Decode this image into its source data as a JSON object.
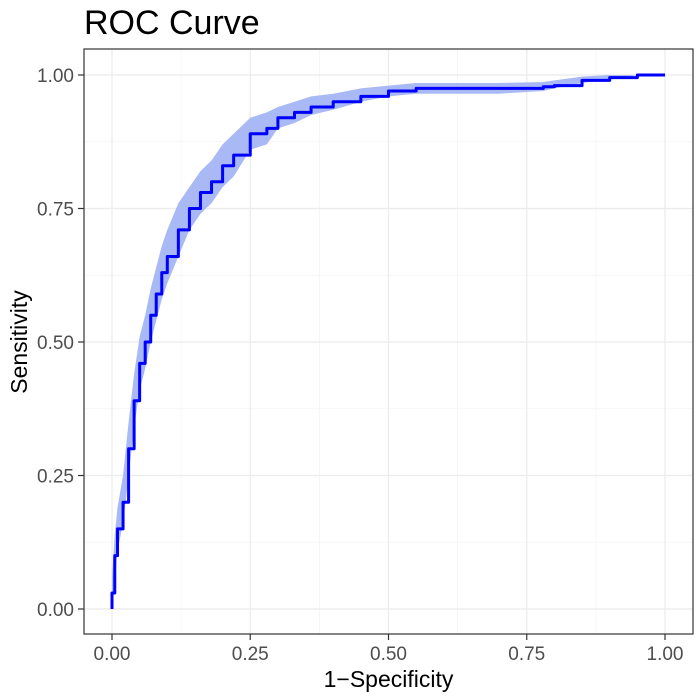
{
  "chart_data": {
    "type": "line",
    "title": "ROC Curve",
    "xlabel": "1−Specificity",
    "ylabel": "Sensitivity",
    "xlim": [
      0,
      1
    ],
    "ylim": [
      0,
      1
    ],
    "x_ticks": [
      "0.00",
      "0.25",
      "0.50",
      "0.75",
      "1.00"
    ],
    "y_ticks": [
      "0.00",
      "0.25",
      "0.50",
      "0.75",
      "1.00"
    ],
    "grid": true,
    "legend": "none",
    "colors": {
      "line": "#0000ff",
      "band": "#a9b9f5",
      "grid_major": "#ebebeb",
      "grid_minor": "#f4f4f4",
      "panel_border": "#333333",
      "tick_text": "#4d4d4d"
    },
    "series": [
      {
        "x": [
          0,
          0,
          0.005,
          0.01,
          0.02,
          0.03,
          0.04,
          0.05,
          0.06,
          0.07,
          0.08,
          0.09,
          0.1,
          0.12,
          0.14,
          0.16,
          0.18,
          0.2,
          0.22,
          0.25,
          0.28,
          0.3,
          0.33,
          0.36,
          0.4,
          0.45,
          0.5,
          0.55,
          0.6,
          0.7,
          0.78,
          0.8,
          0.85,
          0.9,
          0.95,
          1.0
        ],
        "y": [
          0,
          0.03,
          0.1,
          0.15,
          0.2,
          0.3,
          0.39,
          0.46,
          0.5,
          0.55,
          0.59,
          0.63,
          0.66,
          0.71,
          0.75,
          0.78,
          0.8,
          0.83,
          0.85,
          0.89,
          0.9,
          0.92,
          0.93,
          0.94,
          0.95,
          0.96,
          0.97,
          0.975,
          0.975,
          0.975,
          0.978,
          0.98,
          0.99,
          0.995,
          1.0,
          1.0
        ],
        "lower": [
          0,
          0.01,
          0.06,
          0.11,
          0.16,
          0.25,
          0.34,
          0.41,
          0.45,
          0.5,
          0.54,
          0.58,
          0.61,
          0.66,
          0.71,
          0.74,
          0.76,
          0.79,
          0.81,
          0.86,
          0.87,
          0.9,
          0.91,
          0.925,
          0.935,
          0.95,
          0.96,
          0.965,
          0.965,
          0.965,
          0.97,
          0.975,
          0.985,
          0.992,
          1.0,
          1.0
        ],
        "upper": [
          0.02,
          0.06,
          0.14,
          0.19,
          0.25,
          0.35,
          0.44,
          0.51,
          0.55,
          0.6,
          0.64,
          0.68,
          0.71,
          0.76,
          0.79,
          0.82,
          0.84,
          0.87,
          0.89,
          0.92,
          0.93,
          0.94,
          0.95,
          0.96,
          0.965,
          0.975,
          0.98,
          0.985,
          0.985,
          0.985,
          0.987,
          0.99,
          0.997,
          1.0,
          1.0,
          1.0
        ]
      }
    ]
  }
}
